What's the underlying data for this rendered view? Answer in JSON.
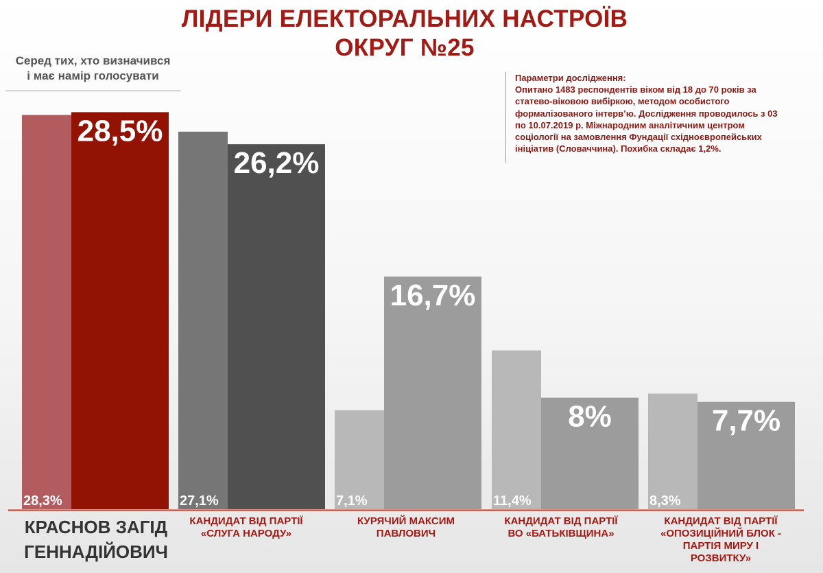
{
  "title": {
    "line1": "ЛІДЕРИ ЕЛЕКТОРАЛЬНИХ НАСТРОЇВ",
    "line2": "ОКРУГ №25"
  },
  "subtitle": {
    "line1": "Серед тих, хто визначився",
    "line2": "і має намір голосувати"
  },
  "params": {
    "lines": [
      "Параметри дослідження:",
      "Опитано 1483 респондентів віком від 18 до 70 років за",
      "статево-віковою вибіркою, методом особистого",
      "формалізованого інтерв’ю. Дослідження проводилось з 03",
      "по 10.07.2019 р. Міжнародним аналітичним центром",
      "соціології на замовлення Фундації східноєвропейських",
      "ініціатив (Словаччина). Похибка складає 1,2%."
    ]
  },
  "chart_data": {
    "type": "bar",
    "categories": [
      "КРАСНОВ ЗАГІД ГЕННАДІЙОВИЧ",
      "КАНДИДАТ ВІД ПАРТІЇ «СЛУГА НАРОДУ»",
      "КУРЯЧИЙ МАКСИМ ПАВЛОВИЧ",
      "КАНДИДАТ ВІД ПАРТІЇ ВО «БАТЬКІВЩИНА»",
      "КАНДИДАТ ВІД ПАРТІЇ «ОПОЗИЦІЙНИЙ БЛОК - ПАРТІЯ МИРУ І РОЗВИТКУ»"
    ],
    "category_lines": [
      [
        "КРАСНОВ ЗАГІД",
        "ГЕННАДІЙОВИЧ"
      ],
      [
        "КАНДИДАТ ВІД ПАРТІЇ",
        "«СЛУГА НАРОДУ»"
      ],
      [
        "КУРЯЧИЙ МАКСИМ",
        "ПАВЛОВИЧ"
      ],
      [
        "КАНДИДАТ ВІД ПАРТІЇ",
        "ВО «БАТЬКІВЩИНА»"
      ],
      [
        "КАНДИДАТ ВІД ПАРТІЇ",
        "«ОПОЗИЦІЙНИЙ БЛОК -",
        "ПАРТІЯ МИРУ І",
        "РОЗВИТКУ»"
      ]
    ],
    "series": [
      {
        "values": [
          28.3,
          27.1,
          7.1,
          11.4,
          8.3
        ],
        "labels": [
          "28,3%",
          "27,1%",
          "7,1%",
          "11,4%",
          "8,3%"
        ]
      },
      {
        "values": [
          28.5,
          26.2,
          16.7,
          8,
          7.7
        ],
        "labels": [
          "28,5%",
          "26,2%",
          "16,7%",
          "8%",
          "7,7%"
        ]
      }
    ],
    "ylim": [
      0,
      30
    ],
    "colors": {
      "back": [
        "#b25c60",
        "#767676",
        "#b8b8b8",
        "#b8b8b8",
        "#b8b8b8"
      ],
      "front": [
        "#921204",
        "#505050",
        "#9c9c9c",
        "#9c9c9c",
        "#9c9c9c"
      ],
      "baseline": "#d8341e"
    },
    "grid": false,
    "legend": "none"
  }
}
